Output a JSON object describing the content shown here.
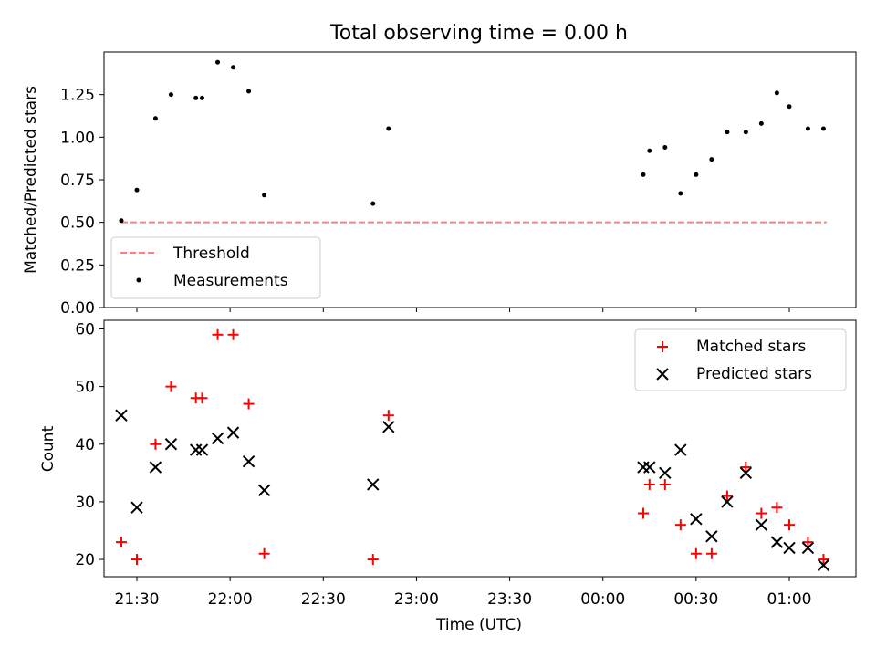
{
  "title": "Total observing time = 0.00 h",
  "xlabel": "Time (UTC)",
  "x_ticks": [
    "21:30",
    "22:00",
    "22:30",
    "23:00",
    "23:30",
    "00:00",
    "00:30",
    "01:00"
  ],
  "chart_data": [
    {
      "type": "scatter",
      "ylabel": "Matched/Predicted stars",
      "ylim": [
        0,
        1.5
      ],
      "y_ticks": [
        "0.00",
        "0.25",
        "0.50",
        "0.75",
        "1.00",
        "1.25"
      ],
      "y_tick_values": [
        0,
        0.25,
        0.5,
        0.75,
        1.0,
        1.25
      ],
      "legend_placement": "lower-left",
      "series": [
        {
          "name": "Threshold",
          "style": "dashed-line",
          "color": "#ff7f7f",
          "x": [
            "21:25",
            "01:12"
          ],
          "y": [
            0.5,
            0.5
          ]
        },
        {
          "name": "Measurements",
          "style": "dot",
          "color": "#000000",
          "x": [
            "21:25",
            "21:30",
            "21:36",
            "21:41",
            "21:49",
            "21:51",
            "21:56",
            "22:01",
            "22:06",
            "22:11",
            "22:46",
            "22:51",
            "00:13",
            "00:15",
            "00:20",
            "00:25",
            "00:30",
            "00:35",
            "00:40",
            "00:46",
            "00:51",
            "00:56",
            "01:00",
            "01:06",
            "01:11"
          ],
          "y": [
            0.51,
            0.69,
            1.11,
            1.25,
            1.23,
            1.23,
            1.44,
            1.41,
            1.27,
            0.66,
            0.61,
            1.05,
            0.78,
            0.92,
            0.94,
            0.67,
            0.78,
            0.87,
            1.03,
            1.03,
            1.08,
            1.26,
            1.18,
            1.05,
            1.05
          ]
        }
      ]
    },
    {
      "type": "scatter",
      "ylabel": "Count",
      "ylim": [
        17,
        61.5
      ],
      "y_ticks": [
        "20",
        "30",
        "40",
        "50",
        "60"
      ],
      "y_tick_values": [
        20,
        30,
        40,
        50,
        60
      ],
      "legend_placement": "upper-right",
      "series": [
        {
          "name": "Matched stars",
          "marker": "plus",
          "color": "#ff0000",
          "x": [
            "21:25",
            "21:30",
            "21:36",
            "21:41",
            "21:49",
            "21:51",
            "21:56",
            "22:01",
            "22:06",
            "22:11",
            "22:46",
            "22:51",
            "00:13",
            "00:15",
            "00:20",
            "00:25",
            "00:30",
            "00:35",
            "00:40",
            "00:46",
            "00:51",
            "00:56",
            "01:00",
            "01:06",
            "01:11"
          ],
          "y": [
            23,
            20,
            40,
            50,
            48,
            48,
            59,
            59,
            47,
            21,
            20,
            45,
            28,
            33,
            33,
            26,
            21,
            21,
            31,
            36,
            28,
            29,
            26,
            23,
            20
          ]
        },
        {
          "name": "Predicted stars",
          "marker": "x",
          "color": "#000000",
          "x": [
            "21:25",
            "21:30",
            "21:36",
            "21:41",
            "21:49",
            "21:51",
            "21:56",
            "22:01",
            "22:06",
            "22:11",
            "22:46",
            "22:51",
            "00:13",
            "00:15",
            "00:20",
            "00:25",
            "00:30",
            "00:35",
            "00:40",
            "00:46",
            "00:51",
            "00:56",
            "01:00",
            "01:06",
            "01:11"
          ],
          "y": [
            45,
            29,
            36,
            40,
            39,
            39,
            41,
            42,
            37,
            32,
            33,
            43,
            36,
            36,
            35,
            39,
            27,
            24,
            30,
            35,
            26,
            23,
            22,
            22,
            19
          ]
        }
      ]
    }
  ]
}
